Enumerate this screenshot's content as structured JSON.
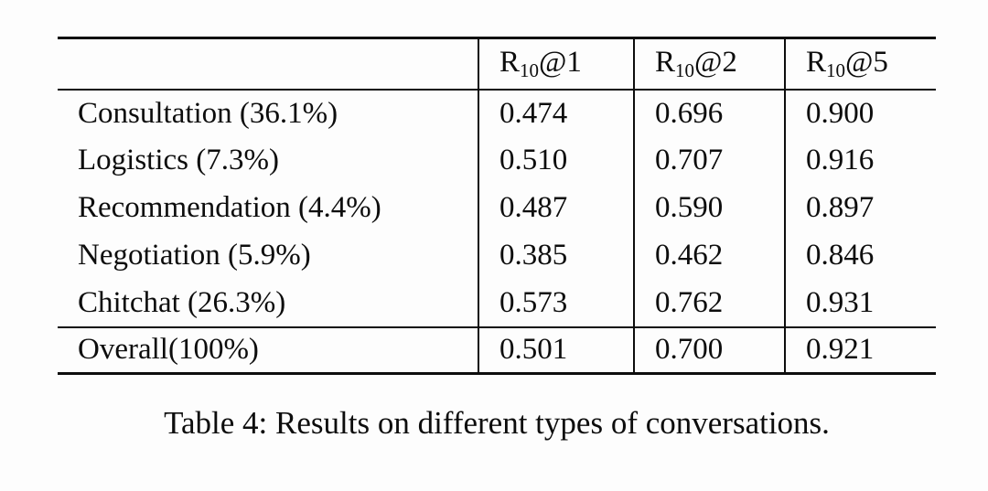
{
  "table": {
    "columns": [
      {
        "base": "R",
        "sub": "10",
        "suffix": "@1"
      },
      {
        "base": "R",
        "sub": "10",
        "suffix": "@2"
      },
      {
        "base": "R",
        "sub": "10",
        "suffix": "@5"
      }
    ],
    "rows": [
      {
        "label": "Consultation (36.1%)",
        "values": [
          "0.474",
          "0.696",
          "0.900"
        ]
      },
      {
        "label": "Logistics (7.3%)",
        "values": [
          "0.510",
          "0.707",
          "0.916"
        ]
      },
      {
        "label": "Recommendation (4.4%)",
        "values": [
          "0.487",
          "0.590",
          "0.897"
        ]
      },
      {
        "label": "Negotiation (5.9%)",
        "values": [
          "0.385",
          "0.462",
          "0.846"
        ]
      },
      {
        "label": "Chitchat (26.3%)",
        "values": [
          "0.573",
          "0.762",
          "0.931"
        ]
      },
      {
        "label": "Overall(100%)",
        "values": [
          "0.501",
          "0.700",
          "0.921"
        ]
      }
    ]
  },
  "caption": "Table 4: Results on different types of conversations."
}
